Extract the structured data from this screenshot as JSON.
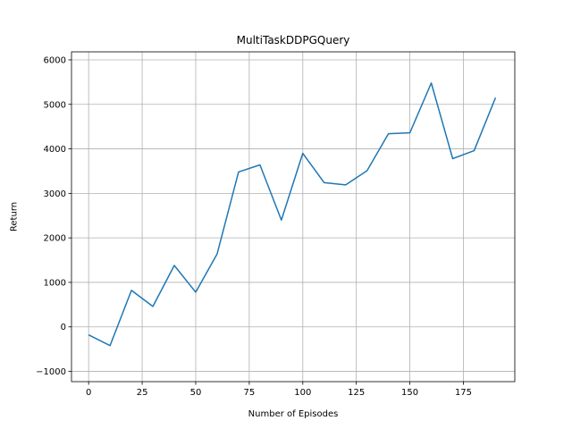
{
  "chart_data": {
    "type": "line",
    "title": "MultiTaskDDPGQuery",
    "xlabel": "Number of Episodes",
    "ylabel": "Return",
    "xlim": [
      -8,
      199
    ],
    "ylim": [
      -1230,
      6180
    ],
    "grid": true,
    "x_ticks": [
      0,
      25,
      50,
      75,
      100,
      125,
      150,
      175
    ],
    "y_ticks": [
      -1000,
      0,
      1000,
      2000,
      3000,
      4000,
      5000,
      6000
    ],
    "x_tick_labels": [
      "0",
      "25",
      "50",
      "75",
      "100",
      "125",
      "150",
      "175"
    ],
    "y_tick_labels": [
      "−1000",
      "0",
      "1000",
      "2000",
      "3000",
      "4000",
      "5000",
      "6000"
    ],
    "series": [
      {
        "color": "#1f77b4",
        "x": [
          0,
          10,
          20,
          30,
          40,
          50,
          60,
          70,
          80,
          90,
          100,
          110,
          120,
          130,
          140,
          150,
          160,
          170,
          180,
          190
        ],
        "y": [
          -180,
          -420,
          820,
          460,
          1380,
          780,
          1640,
          3480,
          3640,
          2400,
          3900,
          3240,
          3190,
          3510,
          4340,
          4360,
          5480,
          3780,
          3960,
          5150
        ]
      }
    ]
  }
}
